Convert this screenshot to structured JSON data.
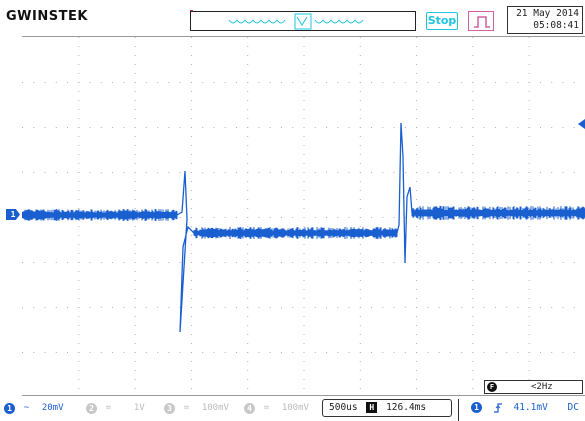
{
  "header": {
    "brand": "GWINSTEK",
    "run_state": "Stop",
    "trigger_type_icon": "edge-pulse-icon",
    "date": "21 May 2014",
    "time": "05:08:41"
  },
  "plot": {
    "ch1_marker": "1",
    "trace_color": "#1a5fd0",
    "grid_divisions": {
      "horizontal": 10,
      "vertical": 8
    }
  },
  "measure": {
    "freq_icon": "F",
    "frequency": "<2Hz"
  },
  "channels": [
    {
      "num": "1",
      "coupling_icon": "~",
      "scale": "20mV",
      "active": true
    },
    {
      "num": "2",
      "coupling_icon": "=",
      "scale": "1V",
      "active": false
    },
    {
      "num": "3",
      "coupling_icon": "=",
      "scale": "100mV",
      "active": false
    },
    {
      "num": "4",
      "coupling_icon": "=",
      "scale": "100mV",
      "active": false
    }
  ],
  "timebase": {
    "scale": "500us",
    "h_icon": "H",
    "position": "126.4ms"
  },
  "trigger": {
    "source": "1",
    "slope_icon": "rising-edge-icon",
    "level": "41.1mV",
    "coupling": "DC"
  },
  "colors": {
    "ch1": "#1a5fd0",
    "run_state": "#1ec4e0",
    "trigger_type": "#d060a0"
  }
}
